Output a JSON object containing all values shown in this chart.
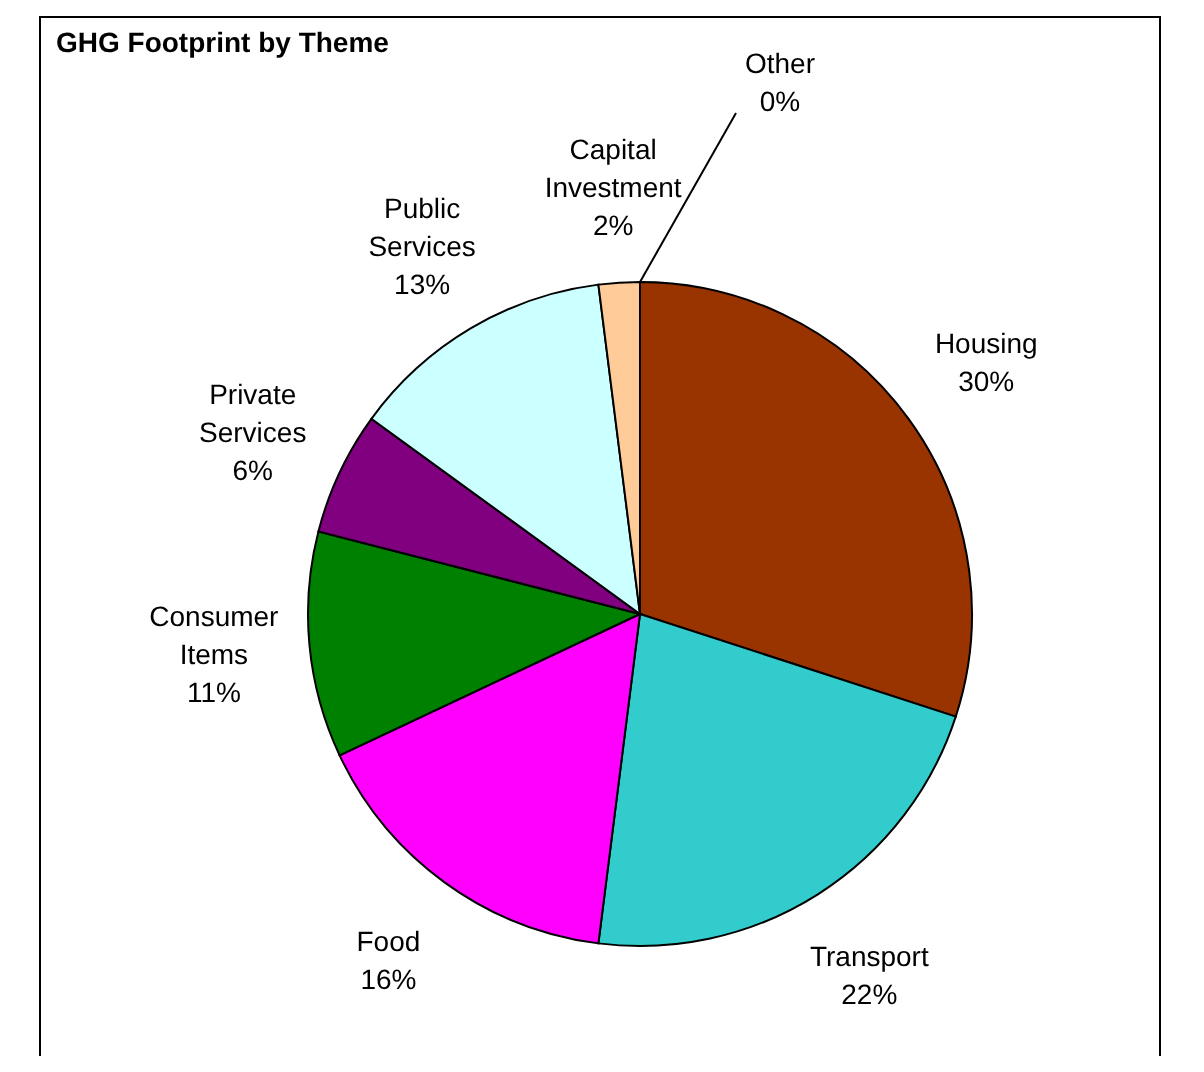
{
  "chart_data": {
    "type": "pie",
    "title": "GHG Footprint by Theme",
    "categories": [
      "Housing",
      "Transport",
      "Food",
      "Consumer Items",
      "Private Services",
      "Public Services",
      "Capital Investment",
      "Other"
    ],
    "values": [
      30,
      22,
      16,
      11,
      6,
      13,
      2,
      0
    ],
    "value_labels": [
      "30%",
      "22%",
      "16%",
      "11%",
      "6%",
      "13%",
      "2%",
      "0%"
    ],
    "colors": [
      "#993300",
      "#33cccc",
      "#ff00ff",
      "#008000",
      "#800080",
      "#ccffff",
      "#ffcc99",
      "#ffff99"
    ]
  }
}
